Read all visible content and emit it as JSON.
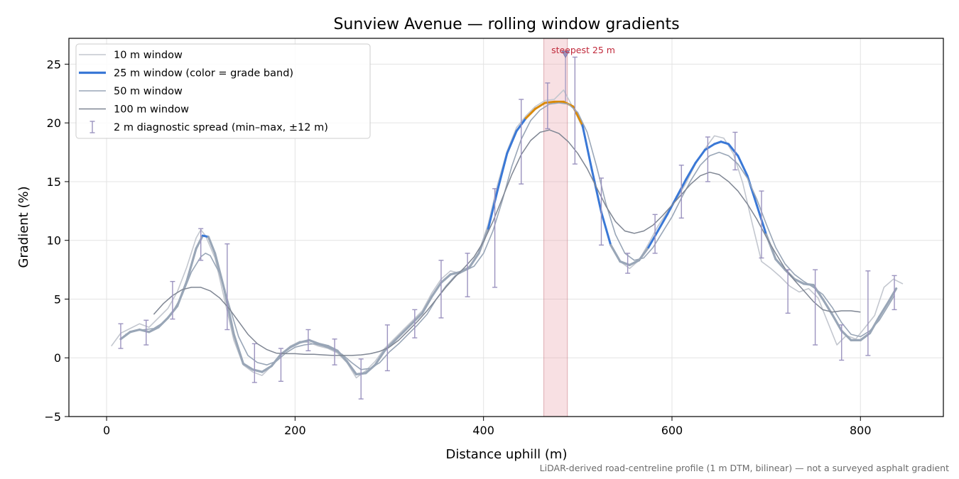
{
  "chart_data": {
    "type": "line",
    "title": "Sunview Avenue — rolling window gradients",
    "xlabel": "Distance uphill (m)",
    "ylabel": "Gradient (%)",
    "xlim": [
      -40,
      888
    ],
    "ylim": [
      -5,
      27.2
    ],
    "xticks": [
      0,
      200,
      400,
      600,
      800
    ],
    "xtick_labels": [
      "0",
      "200",
      "400",
      "600",
      "800"
    ],
    "yticks": [
      -5,
      0,
      5,
      10,
      15,
      20,
      25
    ],
    "ytick_labels": [
      "−5",
      "0",
      "5",
      "10",
      "15",
      "20",
      "25"
    ],
    "grid": true,
    "legend_position": "top-left",
    "footnote": "LiDAR-derived road-centreline profile (1 m DTM, bilinear) — not a surveyed asphalt gradient",
    "colors": {
      "w10": "#c3c7cf",
      "w25_normal": "#3a78d6",
      "w25_steep": "#d98a0a",
      "w50": "#99a6b7",
      "w100": "#7f8693",
      "errorbar": "#9b93bf",
      "band": "#e8a0a8",
      "marker": "#9b93bf",
      "annotation": "#c0283a"
    },
    "steepest": {
      "label": "steepest 25 m",
      "x_start": 464,
      "x_end": 489,
      "peak_x": 487,
      "peak_y": 25.8
    },
    "series": [
      {
        "name": "10 m window",
        "x": [
          5,
          15,
          25,
          35,
          45,
          55,
          65,
          75,
          85,
          95,
          100,
          105,
          115,
          125,
          135,
          145,
          155,
          165,
          175,
          185,
          195,
          205,
          215,
          225,
          235,
          245,
          255,
          265,
          275,
          285,
          295,
          305,
          315,
          325,
          335,
          345,
          355,
          365,
          375,
          385,
          395,
          405,
          415,
          425,
          435,
          445,
          455,
          465,
          475,
          480,
          485,
          495,
          505,
          515,
          525,
          535,
          545,
          555,
          565,
          575,
          585,
          595,
          605,
          615,
          625,
          635,
          645,
          655,
          665,
          675,
          685,
          695,
          705,
          715,
          725,
          735,
          745,
          755,
          765,
          775,
          785,
          795,
          805,
          815,
          825,
          835,
          845
        ],
        "y": [
          1.0,
          2.1,
          2.5,
          2.9,
          2.6,
          3.4,
          4.2,
          5.6,
          7.7,
          10.2,
          10.9,
          10.4,
          8.5,
          5.0,
          1.5,
          -0.6,
          -1.2,
          -1.5,
          -0.7,
          0.3,
          1.0,
          1.4,
          1.3,
          1.0,
          0.8,
          0.4,
          -0.4,
          -1.7,
          -1.1,
          -0.3,
          0.8,
          1.6,
          2.4,
          3.2,
          4.0,
          5.5,
          6.7,
          7.4,
          7.2,
          7.8,
          9.0,
          11.4,
          14.8,
          17.6,
          19.6,
          20.6,
          21.4,
          21.9,
          22.0,
          22.4,
          22.8,
          21.3,
          19.6,
          16.2,
          12.5,
          9.6,
          8.2,
          7.6,
          8.3,
          9.7,
          11.2,
          12.4,
          13.5,
          14.9,
          16.5,
          17.8,
          18.9,
          18.7,
          17.4,
          14.9,
          11.5,
          8.2,
          7.6,
          6.9,
          6.1,
          5.6,
          5.9,
          5.1,
          3.1,
          1.1,
          1.9,
          1.6,
          2.6,
          3.6,
          6.0,
          6.7,
          6.3
        ]
      },
      {
        "name": "25 m window (color = grade band)",
        "x": [
          15,
          25,
          35,
          45,
          55,
          65,
          75,
          85,
          95,
          102,
          108,
          115,
          125,
          135,
          145,
          155,
          165,
          175,
          185,
          195,
          205,
          215,
          225,
          235,
          245,
          255,
          265,
          275,
          285,
          295,
          305,
          315,
          325,
          335,
          345,
          355,
          365,
          375,
          385,
          395,
          405,
          415,
          425,
          435,
          445,
          455,
          465,
          475,
          485,
          495,
          505,
          515,
          525,
          535,
          545,
          555,
          565,
          575,
          585,
          595,
          605,
          615,
          625,
          635,
          645,
          652,
          660,
          670,
          680,
          690,
          700,
          710,
          720,
          730,
          740,
          750,
          760,
          770,
          780,
          790,
          800,
          810,
          820,
          830,
          838
        ],
        "y": [
          1.6,
          2.2,
          2.4,
          2.2,
          2.6,
          3.4,
          4.4,
          6.5,
          9.3,
          10.4,
          10.3,
          8.9,
          5.8,
          2.0,
          -0.5,
          -1.0,
          -1.2,
          -0.7,
          0.3,
          0.9,
          1.3,
          1.5,
          1.2,
          1.0,
          0.6,
          -0.3,
          -1.4,
          -1.3,
          -0.6,
          0.6,
          1.4,
          2.2,
          3.0,
          3.8,
          5.2,
          6.4,
          7.1,
          7.3,
          7.7,
          8.9,
          11.0,
          14.3,
          17.4,
          19.3,
          20.4,
          21.2,
          21.7,
          21.8,
          21.8,
          21.4,
          19.8,
          16.0,
          12.4,
          9.6,
          8.2,
          7.9,
          8.3,
          9.4,
          10.8,
          12.2,
          13.7,
          15.2,
          16.6,
          17.7,
          18.2,
          18.4,
          18.2,
          17.2,
          15.5,
          13.0,
          10.5,
          8.4,
          7.5,
          6.7,
          6.3,
          6.2,
          5.0,
          3.7,
          2.3,
          1.5,
          1.5,
          2.1,
          3.5,
          4.8,
          5.9
        ]
      },
      {
        "name": "50 m window",
        "x": [
          20,
          30,
          40,
          50,
          60,
          70,
          80,
          90,
          100,
          105,
          110,
          120,
          130,
          140,
          150,
          160,
          170,
          180,
          190,
          200,
          210,
          220,
          230,
          240,
          250,
          260,
          270,
          280,
          290,
          300,
          310,
          320,
          330,
          340,
          350,
          360,
          370,
          380,
          390,
          400,
          410,
          420,
          430,
          440,
          450,
          460,
          470,
          480,
          490,
          500,
          510,
          520,
          530,
          540,
          550,
          560,
          570,
          580,
          590,
          600,
          610,
          620,
          630,
          640,
          650,
          660,
          670,
          680,
          690,
          700,
          710,
          720,
          730,
          740,
          750,
          760,
          770,
          780,
          790,
          800,
          810,
          820,
          830,
          836
        ],
        "y": [
          2.0,
          2.3,
          2.4,
          2.5,
          3.0,
          3.9,
          5.3,
          7.3,
          8.6,
          8.9,
          8.7,
          7.2,
          4.5,
          1.8,
          0.2,
          -0.4,
          -0.6,
          -0.3,
          0.4,
          0.9,
          1.1,
          1.2,
          1.0,
          0.7,
          0.3,
          -0.4,
          -1.0,
          -0.9,
          -0.4,
          0.5,
          1.2,
          2.0,
          2.8,
          3.7,
          5.0,
          6.1,
          7.0,
          7.4,
          7.8,
          8.9,
          10.8,
          13.4,
          16.3,
          18.6,
          20.2,
          21.1,
          21.6,
          21.7,
          21.6,
          20.9,
          19.2,
          16.3,
          13.1,
          10.5,
          8.9,
          8.3,
          8.5,
          9.4,
          10.7,
          12.0,
          13.6,
          15.1,
          16.4,
          17.2,
          17.5,
          17.2,
          16.5,
          15.3,
          13.5,
          11.4,
          9.4,
          8.0,
          7.1,
          6.5,
          6.0,
          5.4,
          4.3,
          3.0,
          2.0,
          1.8,
          2.3,
          3.2,
          4.5,
          5.3
        ]
      },
      {
        "name": "100 m window",
        "x": [
          50,
          60,
          70,
          80,
          90,
          100,
          110,
          120,
          130,
          140,
          150,
          160,
          170,
          180,
          190,
          200,
          210,
          220,
          230,
          240,
          250,
          260,
          270,
          280,
          290,
          300,
          310,
          320,
          330,
          340,
          350,
          360,
          370,
          380,
          390,
          400,
          410,
          420,
          430,
          440,
          450,
          460,
          470,
          480,
          490,
          500,
          510,
          520,
          530,
          540,
          550,
          560,
          570,
          580,
          590,
          600,
          610,
          620,
          630,
          640,
          650,
          660,
          670,
          680,
          690,
          700,
          710,
          720,
          730,
          740,
          750,
          760,
          770,
          780,
          790,
          800
        ],
        "y": [
          3.7,
          4.6,
          5.3,
          5.8,
          6.0,
          6.0,
          5.7,
          5.1,
          4.2,
          3.1,
          2.0,
          1.2,
          0.7,
          0.4,
          0.35,
          0.35,
          0.3,
          0.3,
          0.25,
          0.2,
          0.2,
          0.2,
          0.25,
          0.35,
          0.55,
          0.9,
          1.5,
          2.3,
          3.1,
          4.0,
          5.0,
          6.0,
          6.9,
          7.7,
          8.6,
          9.9,
          11.6,
          13.6,
          15.6,
          17.3,
          18.5,
          19.2,
          19.4,
          19.1,
          18.4,
          17.4,
          16.1,
          14.5,
          12.9,
          11.6,
          10.8,
          10.6,
          10.8,
          11.3,
          12.1,
          13.0,
          13.9,
          14.8,
          15.5,
          15.8,
          15.6,
          15.0,
          14.2,
          13.1,
          11.8,
          10.3,
          8.9,
          7.6,
          6.6,
          5.7,
          4.8,
          4.1,
          3.9,
          4.0,
          4.0,
          3.9
        ]
      },
      {
        "name": "2 m diagnostic spread (min–max, ±12 m)",
        "x": [
          15,
          42,
          70,
          100,
          128,
          157,
          185,
          214,
          242,
          270,
          298,
          327,
          355,
          383,
          412,
          440,
          468,
          497,
          525,
          553,
          582,
          610,
          638,
          667,
          695,
          723,
          752,
          780,
          808,
          836
        ],
        "y": [
          1.9,
          2.2,
          5.0,
          9.7,
          6.0,
          -0.4,
          -0.6,
          1.7,
          1.1,
          -1.3,
          1.1,
          2.9,
          5.9,
          7.1,
          10.2,
          18.4,
          21.1,
          21.0,
          12.5,
          7.8,
          10.6,
          14.2,
          17.4,
          17.4,
          11.4,
          5.9,
          4.3,
          1.0,
          3.8,
          5.6
        ],
        "low": [
          0.8,
          1.1,
          3.3,
          8.3,
          2.4,
          -2.1,
          -2.0,
          0.6,
          -0.6,
          -3.5,
          -1.1,
          1.7,
          3.4,
          5.2,
          6.0,
          14.8,
          19.5,
          16.5,
          9.6,
          7.2,
          8.9,
          11.9,
          15.0,
          16.0,
          8.5,
          3.8,
          1.1,
          -0.2,
          0.2,
          4.1
        ],
        "high": [
          2.9,
          3.2,
          6.5,
          11.0,
          9.7,
          1.2,
          0.8,
          2.4,
          1.6,
          -0.1,
          2.8,
          4.1,
          8.3,
          8.9,
          14.4,
          22.0,
          23.4,
          25.6,
          15.3,
          8.9,
          12.2,
          16.4,
          18.8,
          19.2,
          14.2,
          7.5,
          7.5,
          2.8,
          7.4,
          7.0
        ]
      }
    ]
  }
}
